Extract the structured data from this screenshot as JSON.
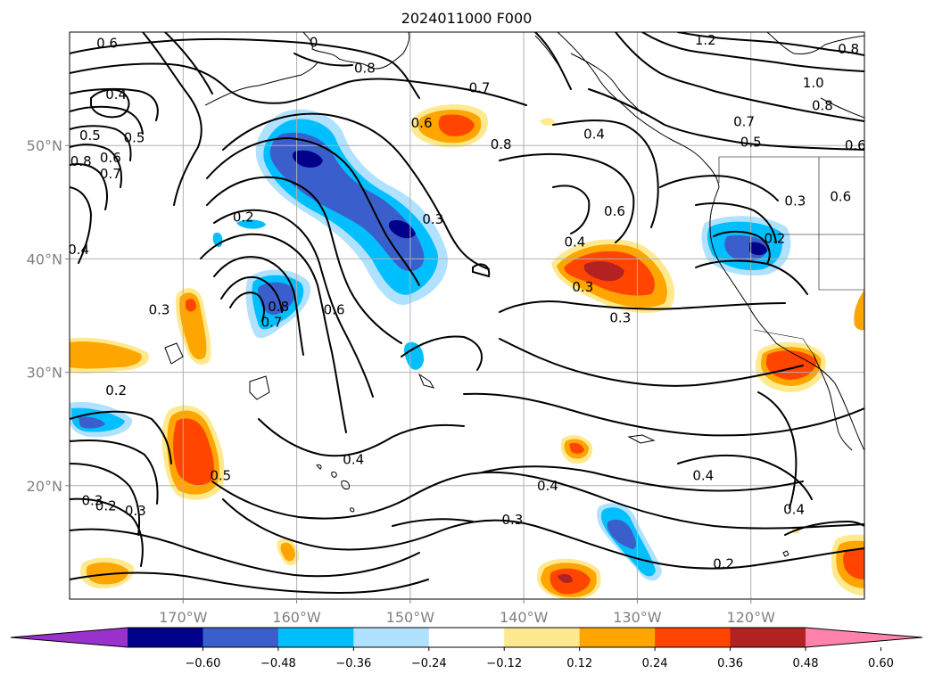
{
  "title": "2024011000 F000",
  "map": {
    "lon_range": [
      -180,
      -110
    ],
    "lat_range": [
      10,
      60
    ],
    "grid": true,
    "lon_ticks": [
      {
        "lon": -170,
        "label": "170°W"
      },
      {
        "lon": -160,
        "label": "160°W"
      },
      {
        "lon": -150,
        "label": "150°W"
      },
      {
        "lon": -140,
        "label": "140°W"
      },
      {
        "lon": -130,
        "label": "130°W"
      },
      {
        "lon": -120,
        "label": "120°W"
      }
    ],
    "lat_ticks": [
      {
        "lat": 50,
        "label": "50°N"
      },
      {
        "lat": 40,
        "label": "40°N"
      },
      {
        "lat": 30,
        "label": "30°N"
      },
      {
        "lat": 20,
        "label": "20°N"
      }
    ]
  },
  "colorbar": {
    "extend": "both",
    "levels": [
      -0.6,
      -0.48,
      -0.36,
      -0.24,
      -0.12,
      0.12,
      0.24,
      0.36,
      0.48,
      0.6
    ],
    "tick_labels": [
      "−0.60",
      "−0.48",
      "−0.36",
      "−0.24",
      "−0.12",
      "0.12",
      "0.24",
      "0.36",
      "0.48",
      "0.60"
    ],
    "colors": [
      "#9932cc",
      "#00008b",
      "#3a5fcd",
      "#00bfff",
      "#b0e2ff",
      "#ffffff",
      "#ffe98f",
      "#ffa500",
      "#ff4500",
      "#b22222",
      "#ff82ab"
    ]
  },
  "contour_labels": [
    {
      "text": "0.6",
      "lon": -176.7,
      "lat": 59.0
    },
    {
      "text": "0",
      "lon": -158.5,
      "lat": 59.1
    },
    {
      "text": "1.2",
      "lon": -124.0,
      "lat": 59.3
    },
    {
      "text": "0.8",
      "lon": -111.4,
      "lat": 58.5
    },
    {
      "text": "0.8",
      "lon": -154.0,
      "lat": 56.8
    },
    {
      "text": "1.0",
      "lon": -114.5,
      "lat": 55.5
    },
    {
      "text": "0.4",
      "lon": -175.9,
      "lat": 54.5
    },
    {
      "text": "0.7",
      "lon": -143.9,
      "lat": 55.1
    },
    {
      "text": "0.8",
      "lon": -113.7,
      "lat": 53.5
    },
    {
      "text": "0.6",
      "lon": -149.0,
      "lat": 52.0
    },
    {
      "text": "0.7",
      "lon": -120.6,
      "lat": 52.1
    },
    {
      "text": "0.4",
      "lon": -133.8,
      "lat": 51.0
    },
    {
      "text": "0.5",
      "lon": -178.2,
      "lat": 50.9
    },
    {
      "text": "0.5",
      "lon": -174.3,
      "lat": 50.7
    },
    {
      "text": "0.5",
      "lon": -120.0,
      "lat": 50.3
    },
    {
      "text": "0.6",
      "lon": -110.8,
      "lat": 50.0
    },
    {
      "text": "0.8",
      "lon": -142.0,
      "lat": 50.1
    },
    {
      "text": "0.6",
      "lon": -176.4,
      "lat": 48.9
    },
    {
      "text": "0.8",
      "lon": -179.0,
      "lat": 48.6
    },
    {
      "text": "0.7",
      "lon": -176.4,
      "lat": 47.5
    },
    {
      "text": "0.3",
      "lon": -116.1,
      "lat": 45.1
    },
    {
      "text": "0.6",
      "lon": -112.1,
      "lat": 45.5
    },
    {
      "text": "0.6",
      "lon": -132.0,
      "lat": 44.2
    },
    {
      "text": "0.2",
      "lon": -164.7,
      "lat": 43.7
    },
    {
      "text": "0.3",
      "lon": -148.0,
      "lat": 43.5
    },
    {
      "text": "0.2",
      "lon": -117.9,
      "lat": 41.8
    },
    {
      "text": "0.4",
      "lon": -135.5,
      "lat": 41.5
    },
    {
      "text": "0.4",
      "lon": -179.2,
      "lat": 40.8
    },
    {
      "text": "0.3",
      "lon": -134.8,
      "lat": 37.5
    },
    {
      "text": "0.6",
      "lon": -156.7,
      "lat": 35.5
    },
    {
      "text": "0.8",
      "lon": -161.6,
      "lat": 35.8
    },
    {
      "text": "0.3",
      "lon": -172.1,
      "lat": 35.5
    },
    {
      "text": "0.7",
      "lon": -162.2,
      "lat": 34.4
    },
    {
      "text": "0.3",
      "lon": -131.5,
      "lat": 34.8
    },
    {
      "text": "0.2",
      "lon": -175.9,
      "lat": 28.4
    },
    {
      "text": "0.5",
      "lon": -166.7,
      "lat": 20.9
    },
    {
      "text": "0.4",
      "lon": -155.0,
      "lat": 22.3
    },
    {
      "text": "0.4",
      "lon": -124.2,
      "lat": 20.9
    },
    {
      "text": "0.4",
      "lon": -137.9,
      "lat": 20.0
    },
    {
      "text": "0.3",
      "lon": -178.0,
      "lat": 18.7
    },
    {
      "text": "0.2",
      "lon": -176.8,
      "lat": 18.2
    },
    {
      "text": "0.3",
      "lon": -174.2,
      "lat": 17.8
    },
    {
      "text": "0.4",
      "lon": -116.2,
      "lat": 17.9
    },
    {
      "text": "0.3",
      "lon": -141.0,
      "lat": 17.0
    },
    {
      "text": "0.2",
      "lon": -122.4,
      "lat": 13.1
    }
  ]
}
